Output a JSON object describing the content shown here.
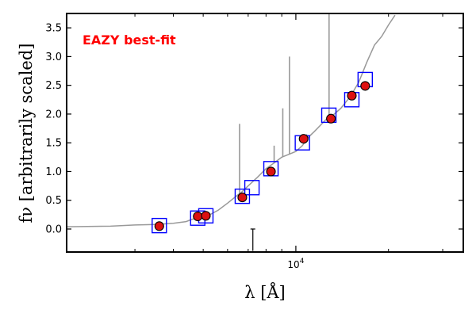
{
  "chart_data": {
    "type": "scatter",
    "title": "",
    "annotation": {
      "text": "EAZY best-fit",
      "color": "#ff0000"
    },
    "xlabel": "λ [Å]",
    "ylabel": "fν [arbitrarily scaled]",
    "xscale": "log",
    "xlim": [
      1800,
      35000
    ],
    "ylim": [
      -0.4,
      3.75
    ],
    "yticks": [
      0.0,
      0.5,
      1.0,
      1.5,
      2.0,
      2.5,
      3.0,
      3.5
    ],
    "ytick_labels": [
      "0.0",
      "0.5",
      "1.0",
      "1.5",
      "2.0",
      "2.5",
      "3.0",
      "3.5"
    ],
    "xticks_major": [
      10000
    ],
    "xtick_labels": [
      "10^4"
    ],
    "xticks_minor": [
      3000,
      4000,
      5000,
      6000,
      7000,
      8000,
      9000,
      20000,
      30000
    ],
    "grid": false,
    "legend": "none",
    "colors": {
      "template": "#999999",
      "observed_fill": "#dd1111",
      "observed_edge": "#000000",
      "model_box": "#0000ff",
      "upper_limit": "#000000"
    },
    "series": [
      {
        "kind": "template_line",
        "x": [
          1800,
          2500,
          3000,
          3500,
          4000,
          4400,
          4600,
          4800,
          5000,
          5300,
          5600,
          6000,
          6500,
          6600,
          7000,
          7500,
          8000,
          8500,
          9000,
          9500,
          10000,
          10500,
          11000,
          11500,
          12000,
          12500,
          13000,
          14000,
          15000,
          16000,
          17000,
          18000,
          19000,
          20000,
          21000
        ],
        "y": [
          0.04,
          0.05,
          0.07,
          0.08,
          0.1,
          0.13,
          0.17,
          0.19,
          0.22,
          0.26,
          0.33,
          0.45,
          0.6,
          0.62,
          0.75,
          0.9,
          1.05,
          1.15,
          1.25,
          1.3,
          1.35,
          1.45,
          1.6,
          1.7,
          1.8,
          1.9,
          1.95,
          2.1,
          2.3,
          2.55,
          2.9,
          3.2,
          3.35,
          3.55,
          3.72
        ],
        "emission_lines": [
          {
            "x": 6563,
            "peak": 1.83
          },
          {
            "x": 9069,
            "peak": 2.1
          },
          {
            "x": 9532,
            "peak": 3.0
          },
          {
            "x": 8500,
            "peak": 1.45
          },
          {
            "x": 10830,
            "peak": 1.65
          },
          {
            "x": 12820,
            "peak": 3.75
          }
        ]
      },
      {
        "kind": "model_boxes",
        "x": [
          3600,
          4800,
          5100,
          6700,
          7200,
          8300,
          10500,
          12800,
          15200,
          16800
        ],
        "y": [
          0.06,
          0.19,
          0.23,
          0.57,
          0.72,
          1.05,
          1.5,
          1.98,
          2.25,
          2.6
        ]
      },
      {
        "kind": "observed_points",
        "x": [
          3600,
          4800,
          5100,
          6700,
          8300,
          10600,
          13000,
          15200,
          16800
        ],
        "y": [
          0.05,
          0.22,
          0.23,
          0.55,
          1.0,
          1.57,
          1.92,
          2.32,
          2.49
        ]
      },
      {
        "kind": "upper_limit",
        "x": [
          7250
        ],
        "y": [
          0.0
        ],
        "y_lower": [
          -0.38
        ]
      }
    ]
  }
}
